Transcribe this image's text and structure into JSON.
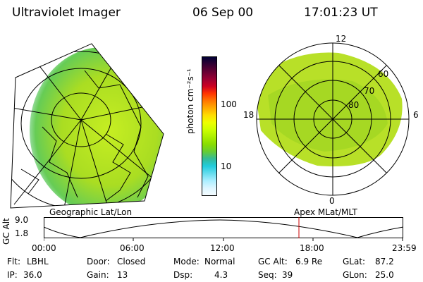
{
  "header": {
    "title": "Ultraviolet Imager",
    "date": "06 Sep 00",
    "time": "17:01:23 UT"
  },
  "colorbar": {
    "label": "photon cm⁻²s⁻¹",
    "ticks": [
      "100",
      "10"
    ],
    "colors": [
      "#000033",
      "#330033",
      "#660033",
      "#990033",
      "#cc0022",
      "#ff3300",
      "#ff7700",
      "#ffaa00",
      "#ffdd00",
      "#eeff00",
      "#ccff00",
      "#aaee00",
      "#88dd00",
      "#66cc33",
      "#33bb99",
      "#22ccdd",
      "#66ddee",
      "#aaeeff",
      "#ddf6ff",
      "#f4fbff"
    ]
  },
  "left_map": {
    "caption": "Geographic Lat/Lon"
  },
  "right_map": {
    "caption": "Apex MLat/MLT",
    "mlt_labels": [
      "12",
      "18",
      "6",
      "0"
    ],
    "lat_labels": [
      "60",
      "70",
      "80"
    ]
  },
  "altitude_plot": {
    "ylabel": "GC Alt",
    "yticks": [
      "9.0",
      "1.8"
    ],
    "xticks": [
      "00:00",
      "06:00",
      "12:00",
      "18:00",
      "23:59"
    ],
    "marker_time": "17:01",
    "marker_color": "#cc0000"
  },
  "info": {
    "flt_label": "Flt:",
    "flt_value": "LBHL",
    "ip_label": "IP:",
    "ip_value": "36.0",
    "door_label": "Door:",
    "door_value": "Closed",
    "gain_label": "Gain:",
    "gain_value": "13",
    "mode_label": "Mode:",
    "mode_value": "Normal",
    "dsp_label": "Dsp:",
    "dsp_value": "4.3",
    "gcalt_label": "GC Alt:",
    "gcalt_value": "6.9 Re",
    "seq_label": "Seq:",
    "seq_value": "39",
    "glat_label": "GLat:",
    "glat_value": "87.2",
    "glon_label": "GLon:",
    "glon_value": "25.0"
  }
}
